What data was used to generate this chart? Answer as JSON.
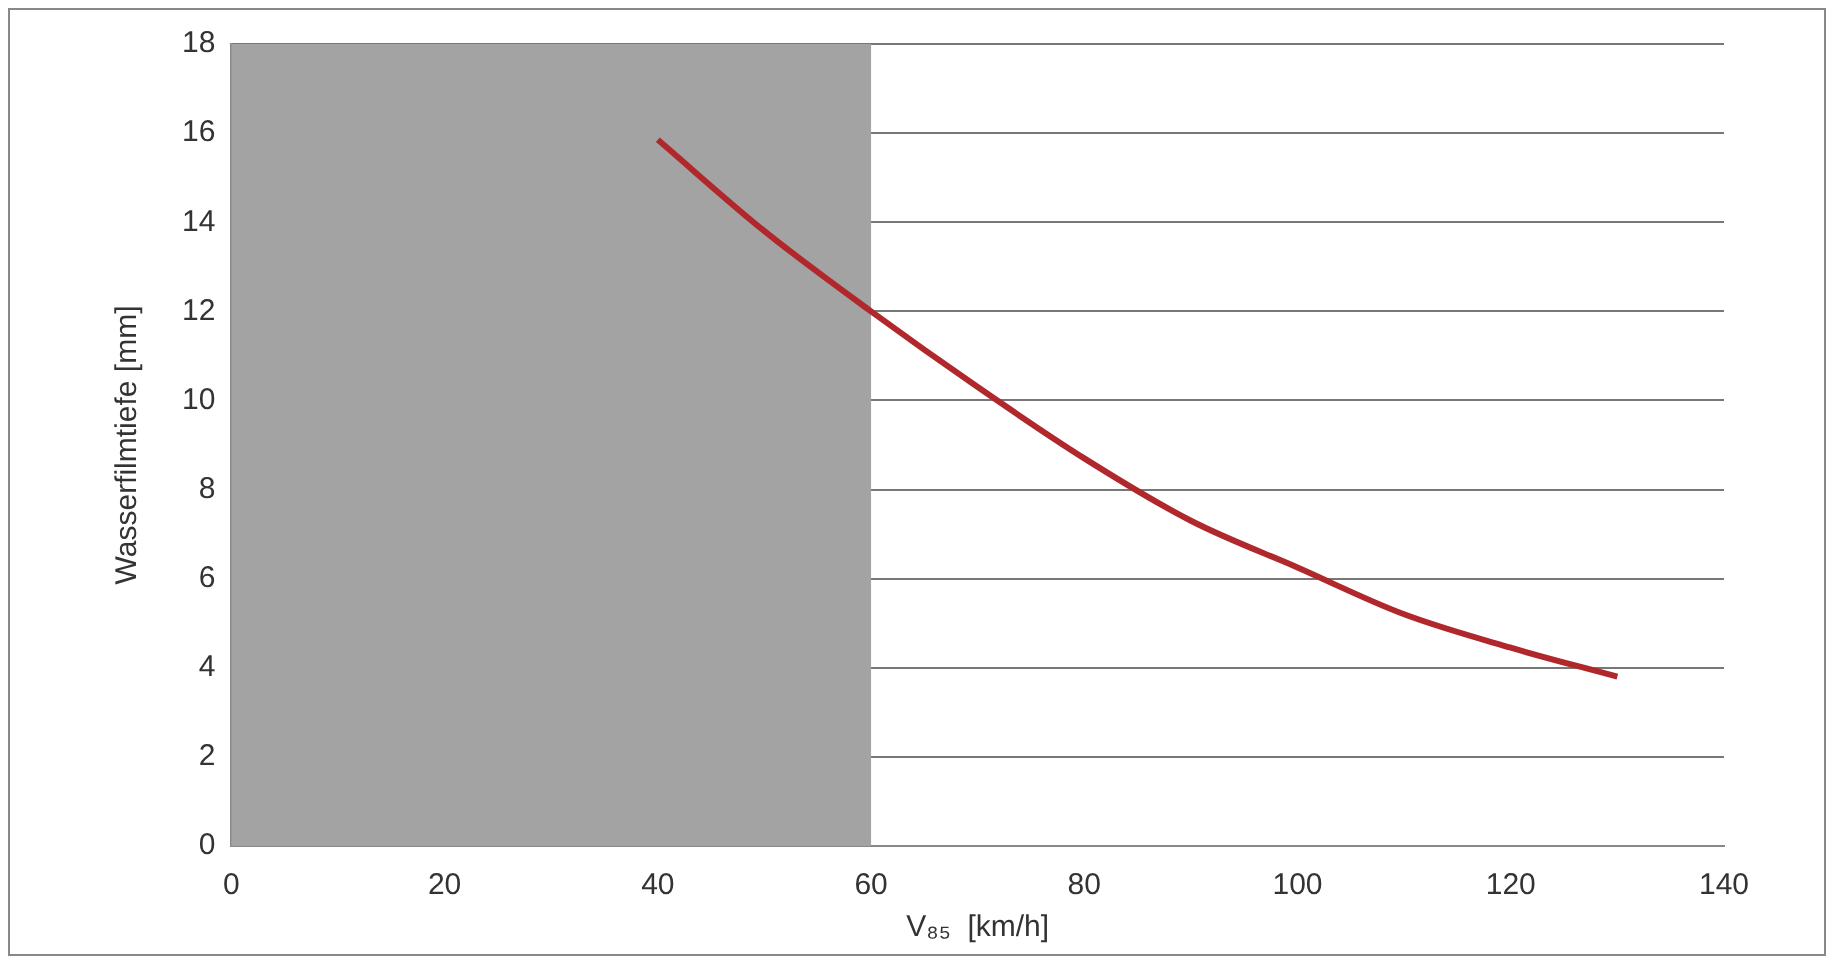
{
  "chart_data": {
    "type": "line",
    "xlabel": "V₈₅  [km/h]",
    "ylabel": "Wasserfilmtiefe [mm]",
    "x": [
      40,
      50,
      60,
      70,
      80,
      90,
      100,
      110,
      120,
      130
    ],
    "series": [
      {
        "color": "#b0282c",
        "values": [
          15.85,
          13.8,
          12.0,
          10.3,
          8.7,
          7.3,
          6.25,
          5.2,
          4.45,
          3.8
        ]
      }
    ],
    "xlim": [
      0,
      140
    ],
    "xticks": [
      0,
      20,
      40,
      60,
      80,
      100,
      120,
      140
    ],
    "ylim": [
      0,
      18
    ],
    "yticks": [
      0,
      2,
      4,
      6,
      8,
      10,
      12,
      14,
      16,
      18
    ],
    "grid": "y",
    "legend": false,
    "marker": "none",
    "line_style": "solid",
    "bands": [
      {
        "axis": "x",
        "from": 0,
        "to": 60,
        "color": "#a3a3a3"
      }
    ]
  }
}
